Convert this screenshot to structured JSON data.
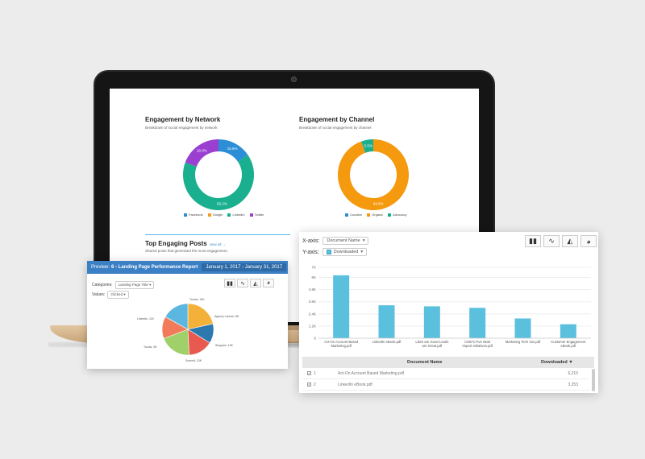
{
  "screen": {
    "network": {
      "title": "Engagement by Network",
      "subtitle": "Breakdown of social engagement by network",
      "legend": [
        "Facebook",
        "Google",
        "LinkedIn",
        "Twitter"
      ]
    },
    "channel": {
      "title": "Engagement by Channel",
      "subtitle": "Breakdown of social engagement by channel",
      "legend": [
        "Curation",
        "Organic",
        "Advocacy"
      ]
    },
    "top_posts": {
      "title": "Top Engaging Posts",
      "link": "view all →",
      "subtitle": "Shared posts that generated the most engagement."
    }
  },
  "left_card": {
    "preview_prefix": "Preview:",
    "report_name": "6 - Landing Page Performance Report",
    "date_range": "January 1, 2017 - January 31, 2017",
    "categories_label": "Categories:",
    "categories_value": "Landing Page Title",
    "values_label": "Values:",
    "values_value": "Clicked",
    "pie_labels": [
      "Trunks, 14K",
      "Agency Launch, 8K",
      "Shoppes, 10K",
      "Summit, 13K",
      "Trucks, 9K",
      "Linkedin, 11K"
    ]
  },
  "right_card": {
    "xaxis_label": "X-axis:",
    "xaxis_value": "Document Name",
    "yaxis_label": "Y-axis:",
    "yaxis_value": "Downloaded",
    "table": {
      "col_doc": "Document Name",
      "col_dl": "Downloaded",
      "sort_icon": "▼",
      "rows": [
        {
          "num": "1",
          "doc": "Act-On Account Based Marketing.pdf",
          "val": "6,215"
        },
        {
          "num": "2",
          "doc": "LinkedIn eBook.pdf",
          "val": "3,253"
        }
      ]
    }
  },
  "chart_data": [
    {
      "type": "pie",
      "title": "Engagement by Network",
      "categories": [
        "Facebook",
        "Google",
        "LinkedIn",
        "Twitter"
      ],
      "values": [
        15.5,
        0,
        65.2,
        19.3
      ],
      "colors": [
        "#2b8ed6",
        "#f29c1f",
        "#1aaf8f",
        "#9b3fd0"
      ]
    },
    {
      "type": "pie",
      "title": "Engagement by Channel",
      "categories": [
        "Curation",
        "Organic",
        "Advocacy"
      ],
      "values": [
        0,
        94.5,
        5.5
      ],
      "colors": [
        "#2b8ed6",
        "#f5990f",
        "#1aaf8f"
      ]
    },
    {
      "type": "pie",
      "categories": [
        "Trunks",
        "Agency Launch",
        "Shoppes",
        "Summit",
        "Trucks",
        "Linkedin"
      ],
      "values": [
        14,
        8,
        10,
        13,
        9,
        11
      ],
      "colors": [
        "#f4b13a",
        "#2c79b0",
        "#e85a4f",
        "#9fd06a",
        "#f17a5a",
        "#5cb7e0"
      ]
    },
    {
      "type": "bar",
      "categories": [
        "Act-On Account Based Marketing.pdf",
        "LinkedIn eBook.pdf",
        "Likes are Good Leads are Great.pdf",
        "CMO's Five Most Import Initiatives.pdf",
        "Marketing Tech 101.pdf",
        "Customer Engagement eBook.pdf"
      ],
      "tick_lines": [
        [
          "Act-On Account Based",
          "Marketing.pdf"
        ],
        [
          "LinkedIn eBook.pdf"
        ],
        [
          "Likes are Good Leads",
          "are Great.pdf"
        ],
        [
          "CMO's Five Most",
          "Import Initiatives.pdf"
        ],
        [
          "Marketing Tech 101.pdf"
        ],
        [
          "Customer Engagement",
          "eBook.pdf"
        ]
      ],
      "values": [
        6215,
        3253,
        3150,
        3000,
        1950,
        1380
      ],
      "yticks": [
        "0",
        "1.2K",
        "2.4K",
        "3.6K",
        "4.8K",
        "6K",
        "7K"
      ],
      "ylim": [
        0,
        7000
      ],
      "color": "#5bc0de",
      "grid": true
    }
  ]
}
